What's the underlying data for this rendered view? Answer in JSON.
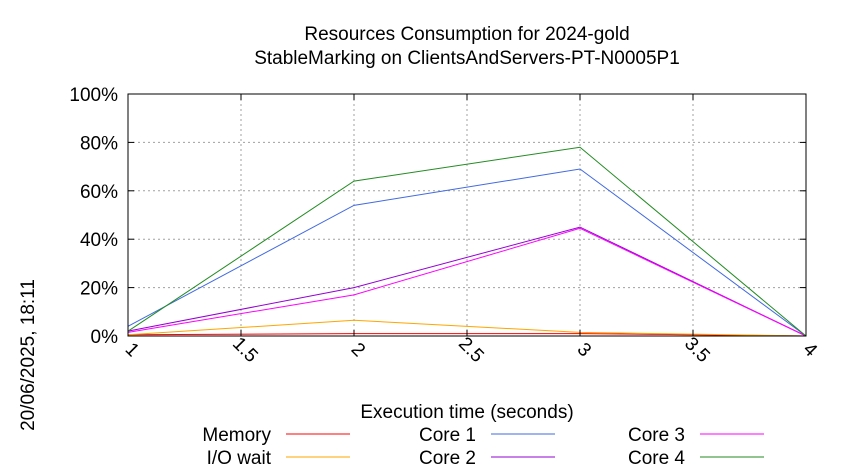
{
  "chart_data": {
    "type": "line",
    "title": "Resources Consumption for 2024-gold",
    "subtitle": "StableMarking on ClientsAndServers-PT-N0005P1",
    "xlabel": "Execution time (seconds)",
    "ylabel": "",
    "side_label": "20/06/2025, 18:11",
    "xlim": [
      1,
      4
    ],
    "ylim": [
      0,
      100
    ],
    "x_ticks": [
      1,
      1.5,
      2,
      2.5,
      3,
      3.5,
      4
    ],
    "x_tick_labels": [
      "1",
      "1.5",
      "2",
      "2.5",
      "3",
      "3.5",
      "4"
    ],
    "y_ticks": [
      0,
      20,
      40,
      60,
      80,
      100
    ],
    "y_tick_labels": [
      "0%",
      "20%",
      "40%",
      "60%",
      "80%",
      "100%"
    ],
    "grid": true,
    "legend_position": "bottom",
    "series": [
      {
        "name": "Memory",
        "color": "#ff0000",
        "x": [
          1,
          2,
          3,
          4
        ],
        "y": [
          0.5,
          1,
          1,
          0
        ]
      },
      {
        "name": "I/O wait",
        "color": "#ffa500",
        "x": [
          1,
          2,
          3,
          4
        ],
        "y": [
          0.5,
          6.5,
          1.5,
          0
        ]
      },
      {
        "name": "Core 1",
        "color": "#4169e1",
        "x": [
          1,
          2,
          3,
          4
        ],
        "y": [
          4,
          54,
          69,
          0
        ]
      },
      {
        "name": "Core 2",
        "color": "#9400d3",
        "x": [
          1,
          2,
          3,
          4
        ],
        "y": [
          2,
          20,
          45,
          0
        ]
      },
      {
        "name": "Core 3",
        "color": "#ff00ff",
        "x": [
          1,
          2,
          3,
          4
        ],
        "y": [
          1.5,
          17,
          44.5,
          0
        ]
      },
      {
        "name": "Core 4",
        "color": "#228b22",
        "x": [
          1,
          2,
          3,
          4
        ],
        "y": [
          2,
          64,
          78,
          0
        ]
      }
    ]
  }
}
